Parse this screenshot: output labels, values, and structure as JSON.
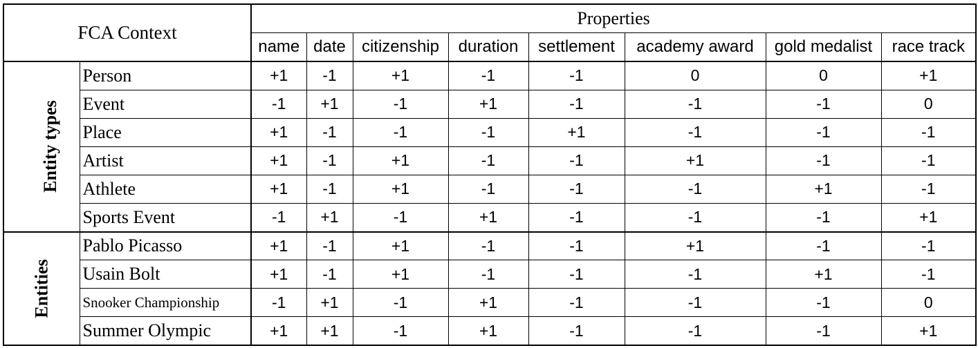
{
  "table": {
    "corner_label": "FCA Context",
    "properties_label": "Properties",
    "columns": [
      "name",
      "date",
      "citizenship",
      "duration",
      "settlement",
      "academy award",
      "gold medalist",
      "race track"
    ],
    "groups": [
      {
        "label": "Entity types",
        "rows": [
          {
            "label": "Person",
            "values": [
              "+1",
              "-1",
              "+1",
              "-1",
              "-1",
              "0",
              "0",
              "+1"
            ]
          },
          {
            "label": "Event",
            "values": [
              "-1",
              "+1",
              "-1",
              "+1",
              "-1",
              "-1",
              "-1",
              "0"
            ]
          },
          {
            "label": "Place",
            "values": [
              "+1",
              "-1",
              "-1",
              "-1",
              "+1",
              "-1",
              "-1",
              "-1"
            ]
          },
          {
            "label": "Artist",
            "values": [
              "+1",
              "-1",
              "+1",
              "-1",
              "-1",
              "+1",
              "-1",
              "-1"
            ]
          },
          {
            "label": "Athlete",
            "values": [
              "+1",
              "-1",
              "+1",
              "-1",
              "-1",
              "-1",
              "+1",
              "-1"
            ]
          },
          {
            "label": "Sports Event",
            "values": [
              "-1",
              "+1",
              "-1",
              "+1",
              "-1",
              "-1",
              "-1",
              "+1"
            ]
          }
        ]
      },
      {
        "label": "Entities",
        "rows": [
          {
            "label": "Pablo Picasso",
            "values": [
              "+1",
              "-1",
              "+1",
              "-1",
              "-1",
              "+1",
              "-1",
              "-1"
            ]
          },
          {
            "label": "Usain Bolt",
            "values": [
              "+1",
              "-1",
              "+1",
              "-1",
              "-1",
              "-1",
              "+1",
              "-1"
            ]
          },
          {
            "label": "Snooker Championship",
            "values": [
              "-1",
              "+1",
              "-1",
              "+1",
              "-1",
              "-1",
              "-1",
              "0"
            ]
          },
          {
            "label": "Summer Olympic",
            "values": [
              "+1",
              "+1",
              "-1",
              "+1",
              "-1",
              "-1",
              "-1",
              "+1"
            ]
          }
        ]
      }
    ]
  }
}
